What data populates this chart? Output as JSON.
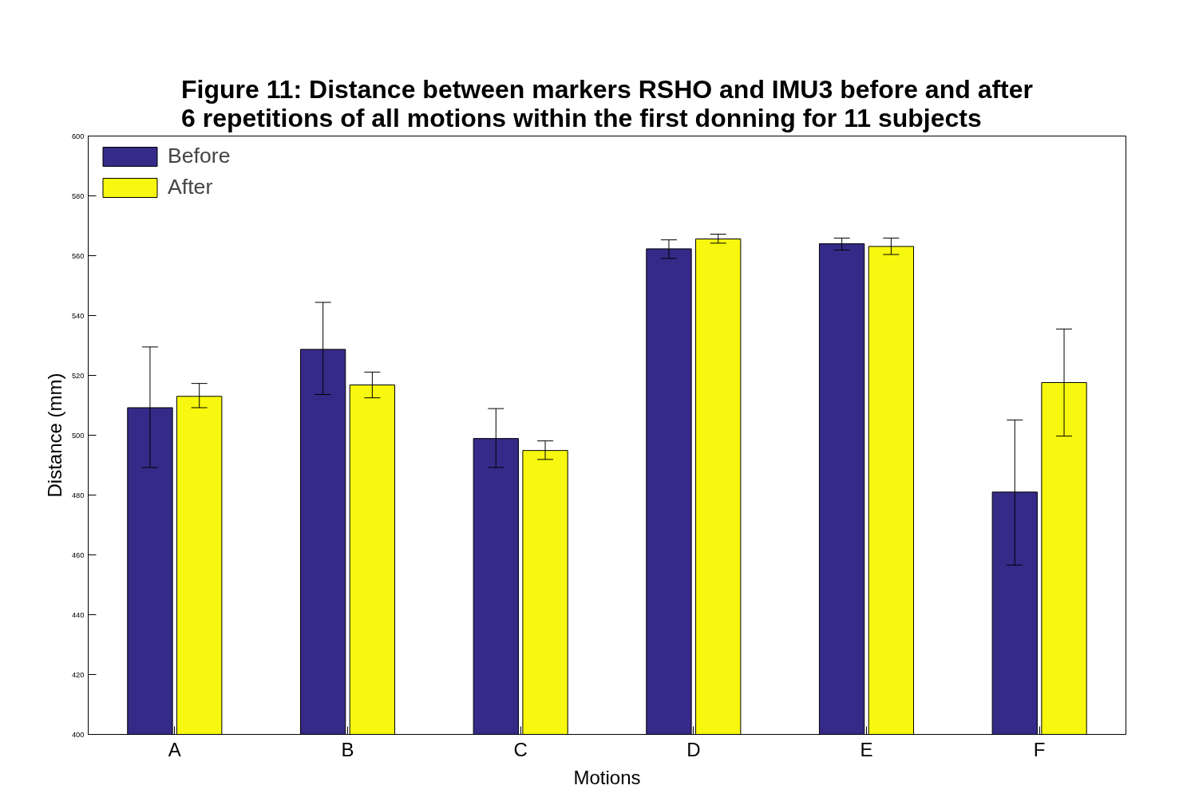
{
  "chart_data": {
    "type": "bar",
    "title": "Figure 11: Distance between markers RSHO and IMU3 before and after\n6 repetitions of all motions within the first donning for 11 subjects",
    "xlabel": "Motions",
    "ylabel": "Distance (mm)",
    "categories": [
      "A",
      "B",
      "C",
      "D",
      "E",
      "F"
    ],
    "series": [
      {
        "name": "Before",
        "color": "#352a87",
        "values": [
          509.2,
          528.7,
          498.9,
          562.3,
          564.0,
          481.0
        ],
        "errors": [
          [
            489.2,
            529.5
          ],
          [
            513.6,
            544.4
          ],
          [
            489.2,
            508.9
          ],
          [
            559.1,
            565.3
          ],
          [
            561.9,
            565.9
          ],
          [
            456.6,
            505.1
          ]
        ]
      },
      {
        "name": "After",
        "color": "#f7f70f",
        "values": [
          513.0,
          516.8,
          494.9,
          565.6,
          563.1,
          517.6
        ],
        "errors": [
          [
            509.2,
            517.3
          ],
          [
            512.5,
            521.1
          ],
          [
            491.9,
            498.1
          ],
          [
            564.2,
            567.2
          ],
          [
            560.4,
            565.9
          ],
          [
            499.7,
            535.5
          ]
        ]
      }
    ],
    "ylim": [
      400,
      600
    ],
    "yticks": [
      400,
      420,
      440,
      460,
      480,
      500,
      520,
      540,
      560,
      580,
      600
    ],
    "grid": false,
    "legend": "top left"
  }
}
